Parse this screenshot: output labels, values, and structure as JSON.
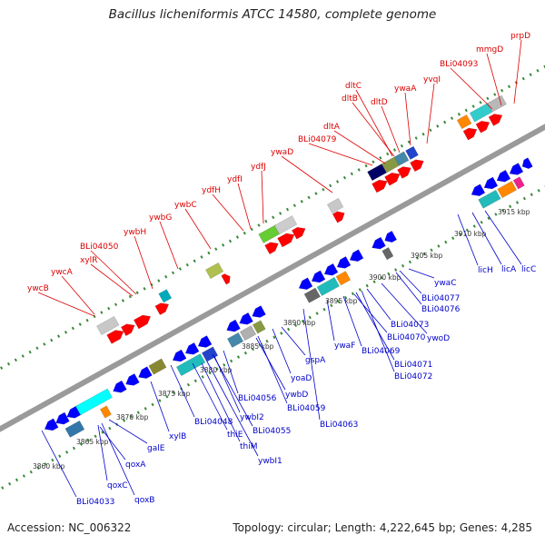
{
  "title": "Bacillus licheniformis ATCC 14580, complete genome",
  "footer": {
    "accession": "Accession: NC_006322",
    "topology": "Topology: circular; Length: 4,222,645 bp; Genes: 4,285"
  },
  "colors": {
    "top_label": "#dd0000",
    "bottom_label": "#0000cc",
    "ruler_tick": "#3a8a3a",
    "axis": "#9a9a9a"
  },
  "top_labels": [
    {
      "text": "ywcB"
    },
    {
      "text": "ywcA"
    },
    {
      "text": "xylR"
    },
    {
      "text": "BLi04050"
    },
    {
      "text": "ywbH"
    },
    {
      "text": "ywbG"
    },
    {
      "text": "ywbC"
    },
    {
      "text": "ydfH"
    },
    {
      "text": "ydfI"
    },
    {
      "text": "ydfJ"
    },
    {
      "text": "ywaD"
    },
    {
      "text": "BLi04079"
    },
    {
      "text": "dltA"
    },
    {
      "text": "dltB"
    },
    {
      "text": "dltC"
    },
    {
      "text": "dltD"
    },
    {
      "text": "ywaA"
    },
    {
      "text": "yvqI"
    },
    {
      "text": "BLi04093"
    },
    {
      "text": "mmgD"
    },
    {
      "text": "prpD"
    }
  ],
  "bottom_labels": [
    {
      "text": "BLi04033"
    },
    {
      "text": "qoxB"
    },
    {
      "text": "qoxC"
    },
    {
      "text": "qoxA"
    },
    {
      "text": "galE"
    },
    {
      "text": "xylB"
    },
    {
      "text": "BLi04048"
    },
    {
      "text": "thiE"
    },
    {
      "text": "thiM"
    },
    {
      "text": "ywbI1"
    },
    {
      "text": "BLi04055"
    },
    {
      "text": "ywbI2"
    },
    {
      "text": "BLi04056"
    },
    {
      "text": "ywbD"
    },
    {
      "text": "BLi04059"
    },
    {
      "text": "yoaD"
    },
    {
      "text": "gspA"
    },
    {
      "text": "BLi04063"
    },
    {
      "text": "ywaF"
    },
    {
      "text": "BLi04069"
    },
    {
      "text": "BLi04070"
    },
    {
      "text": "BLi04071"
    },
    {
      "text": "BLi04072"
    },
    {
      "text": "BLi04073"
    },
    {
      "text": "ywoD"
    },
    {
      "text": "BLi04076"
    },
    {
      "text": "BLi04077"
    },
    {
      "text": "ywaC"
    },
    {
      "text": "licH"
    },
    {
      "text": "licA"
    },
    {
      "text": "licC"
    }
  ],
  "ruler_labels": [
    {
      "text": "3860 kbp"
    },
    {
      "text": "3865 kbp"
    },
    {
      "text": "3870 kbp"
    },
    {
      "text": "3875 kbp"
    },
    {
      "text": "3880 kbp"
    },
    {
      "text": "3885 kbp"
    },
    {
      "text": "3890 kbp"
    },
    {
      "text": "3895 kbp"
    },
    {
      "text": "3900 kbp"
    },
    {
      "text": "3905 kbp"
    },
    {
      "text": "3910 kbp"
    },
    {
      "text": "3915 kbp"
    }
  ]
}
